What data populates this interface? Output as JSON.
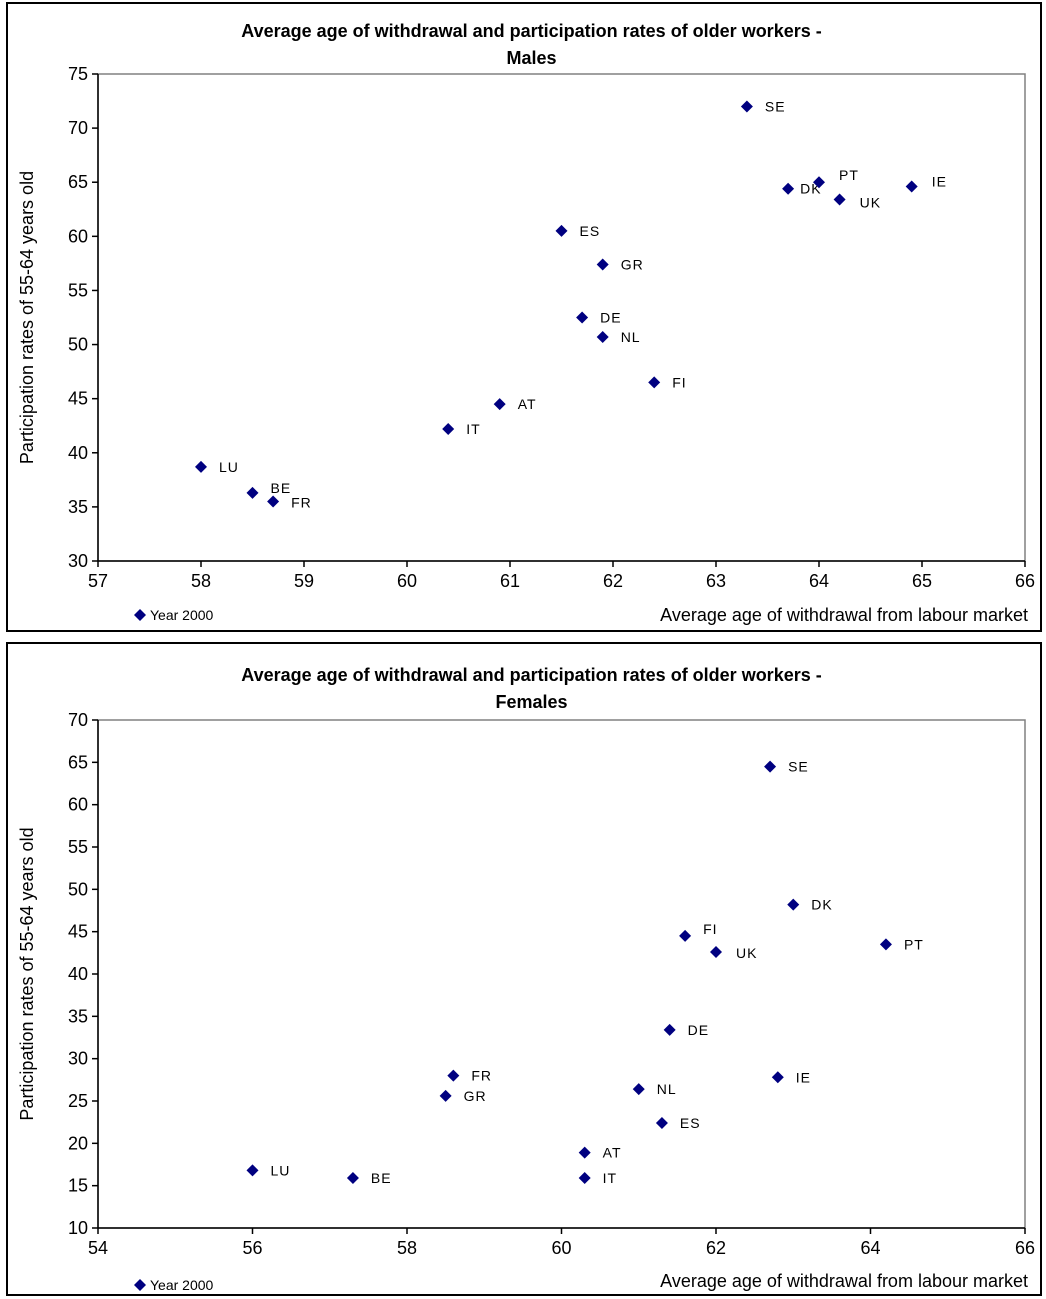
{
  "chart_data": [
    {
      "type": "scatter",
      "title": "Average age of withdrawal and participation rates of older workers -",
      "subtitle": "Males",
      "xlabel": "Average age of withdrawal from labour market",
      "ylabel": "Participation rates of 55-64 years old",
      "xlim": [
        57,
        66
      ],
      "ylim": [
        30,
        75
      ],
      "x_ticks": [
        "57",
        "58",
        "59",
        "60",
        "61",
        "62",
        "63",
        "64",
        "65",
        "66"
      ],
      "y_ticks": [
        "30",
        "35",
        "40",
        "45",
        "50",
        "55",
        "60",
        "65",
        "70",
        "75"
      ],
      "legend": "Year 2000",
      "legend_position": "bottom-left",
      "marker_color": "#000080",
      "series": [
        {
          "name": "Year 2000",
          "points": [
            {
              "label": "SE",
              "x": 63.3,
              "y": 72.0
            },
            {
              "label": "DK",
              "x": 63.7,
              "y": 64.4
            },
            {
              "label": "PT",
              "x": 64.0,
              "y": 65.0
            },
            {
              "label": "UK",
              "x": 64.2,
              "y": 63.4
            },
            {
              "label": "IE",
              "x": 64.9,
              "y": 64.6
            },
            {
              "label": "ES",
              "x": 61.5,
              "y": 60.5
            },
            {
              "label": "GR",
              "x": 61.9,
              "y": 57.4
            },
            {
              "label": "DE",
              "x": 61.7,
              "y": 52.5
            },
            {
              "label": "NL",
              "x": 61.9,
              "y": 50.7
            },
            {
              "label": "FI",
              "x": 62.4,
              "y": 46.5
            },
            {
              "label": "AT",
              "x": 60.9,
              "y": 44.5
            },
            {
              "label": "IT",
              "x": 60.4,
              "y": 42.2
            },
            {
              "label": "LU",
              "x": 58.0,
              "y": 38.7
            },
            {
              "label": "BE",
              "x": 58.5,
              "y": 36.3
            },
            {
              "label": "FR",
              "x": 58.7,
              "y": 35.5
            }
          ]
        }
      ]
    },
    {
      "type": "scatter",
      "title": "Average age of withdrawal and participation rates of older workers -",
      "subtitle": "Females",
      "xlabel": "Average age of withdrawal from labour market",
      "ylabel": "Participation rates of 55-64 years old",
      "xlim": [
        54,
        66
      ],
      "ylim": [
        10,
        70
      ],
      "x_ticks": [
        "54",
        "56",
        "58",
        "60",
        "62",
        "64",
        "66"
      ],
      "y_ticks": [
        "10",
        "15",
        "20",
        "25",
        "30",
        "35",
        "40",
        "45",
        "50",
        "55",
        "60",
        "65",
        "70"
      ],
      "legend": "Year 2000",
      "legend_position": "bottom-left",
      "marker_color": "#000080",
      "series": [
        {
          "name": "Year 2000",
          "points": [
            {
              "label": "SE",
              "x": 62.7,
              "y": 64.5
            },
            {
              "label": "DK",
              "x": 63.0,
              "y": 48.2
            },
            {
              "label": "PT",
              "x": 64.2,
              "y": 43.5
            },
            {
              "label": "FI",
              "x": 61.6,
              "y": 44.5
            },
            {
              "label": "UK",
              "x": 62.0,
              "y": 42.6
            },
            {
              "label": "DE",
              "x": 61.4,
              "y": 33.4
            },
            {
              "label": "FR",
              "x": 58.6,
              "y": 28.0
            },
            {
              "label": "IE",
              "x": 62.8,
              "y": 27.8
            },
            {
              "label": "NL",
              "x": 61.0,
              "y": 26.4
            },
            {
              "label": "GR",
              "x": 58.5,
              "y": 25.6
            },
            {
              "label": "ES",
              "x": 61.3,
              "y": 22.4
            },
            {
              "label": "AT",
              "x": 60.3,
              "y": 18.9
            },
            {
              "label": "LU",
              "x": 56.0,
              "y": 16.8
            },
            {
              "label": "BE",
              "x": 57.3,
              "y": 15.9
            },
            {
              "label": "IT",
              "x": 60.3,
              "y": 15.9
            }
          ]
        }
      ]
    }
  ]
}
